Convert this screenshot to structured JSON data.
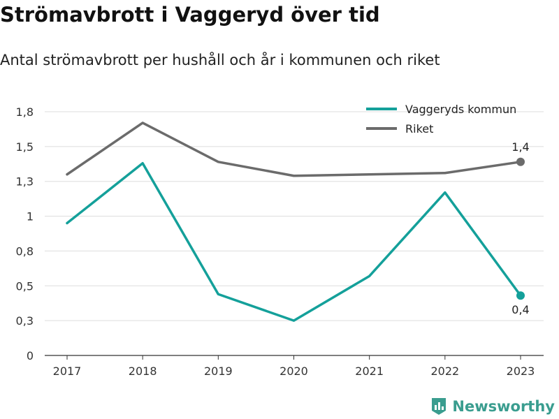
{
  "chart_data": {
    "type": "line",
    "title": "Strömavbrott i Vaggeryd över tid",
    "subtitle": "Antal strömavbrott per hushåll och år i kommunen och riket",
    "categories": [
      "2017",
      "2018",
      "2019",
      "2020",
      "2021",
      "2022",
      "2023"
    ],
    "series": [
      {
        "name": "Vaggeryds kommun",
        "color": "#14a09a",
        "values": [
          0.95,
          1.38,
          0.44,
          0.25,
          0.57,
          1.17,
          0.43
        ],
        "end_label": "0,4"
      },
      {
        "name": "Riket",
        "color": "#6b6b6b",
        "values": [
          1.3,
          1.67,
          1.39,
          1.29,
          1.3,
          1.31,
          1.39
        ],
        "end_label": "1,4"
      }
    ],
    "y_ticks": [
      {
        "value": 0,
        "label": "0"
      },
      {
        "value": 0.25,
        "label": "0,3"
      },
      {
        "value": 0.5,
        "label": "0,5"
      },
      {
        "value": 0.75,
        "label": "0,8"
      },
      {
        "value": 1.0,
        "label": "1"
      },
      {
        "value": 1.25,
        "label": "1,3"
      },
      {
        "value": 1.5,
        "label": "1,5"
      },
      {
        "value": 1.75,
        "label": "1,8"
      }
    ],
    "ylim": [
      0,
      1.75
    ],
    "grid": true,
    "legend": "top-right",
    "xlabel": "",
    "ylabel": ""
  },
  "branding": {
    "name": "Newsworthy",
    "color": "#3a9d8f"
  }
}
